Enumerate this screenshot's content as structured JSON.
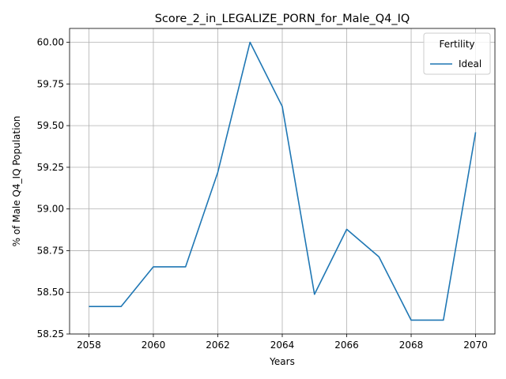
{
  "chart_data": {
    "type": "line",
    "title": "Score_2_in_LEGALIZE_PORN_for_Male_Q4_IQ",
    "xlabel": "Years",
    "ylabel": "% of Male Q4_IQ Population",
    "x": [
      2058,
      2059,
      2060,
      2061,
      2062,
      2063,
      2064,
      2065,
      2066,
      2067,
      2068,
      2069,
      2070
    ],
    "series": [
      {
        "name": "Ideal",
        "color": "#1f77b4",
        "values": [
          58.415,
          58.415,
          58.653,
          58.653,
          59.22,
          60.0,
          59.615,
          58.488,
          58.878,
          58.713,
          58.333,
          58.333,
          59.46
        ]
      }
    ],
    "xlim": [
      2057.4,
      2070.6
    ],
    "ylim": [
      58.25,
      60.083
    ],
    "xticks": [
      "2058",
      "2060",
      "2062",
      "2064",
      "2066",
      "2068",
      "2070"
    ],
    "yticks": [
      "58.25",
      "58.50",
      "58.75",
      "59.00",
      "59.25",
      "59.50",
      "59.75",
      "60.00"
    ],
    "grid": true,
    "legend": {
      "title": "Fertility",
      "placement": "top-right"
    }
  }
}
